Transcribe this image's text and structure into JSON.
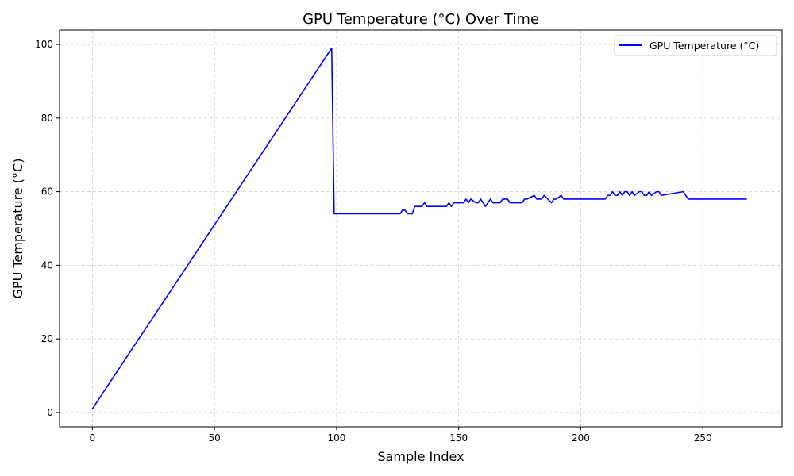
{
  "chart_data": {
    "type": "line",
    "title": "GPU Temperature (°C) Over Time",
    "xlabel": "Sample Index",
    "ylabel": "GPU Temperature (°C)",
    "xlim": [
      -13.45,
      282.45
    ],
    "ylim": [
      -3.9,
      103.9
    ],
    "xticks": [
      0,
      50,
      100,
      150,
      200,
      250
    ],
    "yticks": [
      0,
      20,
      40,
      60,
      80,
      100
    ],
    "grid": true,
    "legend_position": "top-right",
    "series": [
      {
        "name": "GPU Temperature (°C)",
        "color": "#0000ff",
        "x": [
          0,
          98,
          99,
          126,
          127,
          128,
          129,
          131,
          132,
          135,
          136,
          137,
          145,
          146,
          147,
          148,
          152,
          153,
          154,
          155,
          157,
          158,
          159,
          161,
          162,
          163,
          164,
          167,
          168,
          170,
          171,
          176,
          177,
          178,
          181,
          182,
          184,
          185,
          188,
          189,
          190,
          192,
          193,
          210,
          211,
          212,
          213,
          214,
          215,
          216,
          217,
          218,
          219,
          220,
          221,
          222,
          224,
          225,
          226,
          227,
          228,
          229,
          231,
          232,
          233,
          242,
          244,
          268
        ],
        "y": [
          1,
          99,
          54,
          54,
          55,
          55,
          54,
          54,
          56,
          56,
          57,
          56,
          56,
          57,
          56,
          57,
          57,
          58,
          57,
          58,
          57,
          57,
          58,
          56,
          57,
          58,
          57,
          57,
          58,
          58,
          57,
          57,
          58,
          58,
          59,
          58,
          58,
          59,
          57,
          58,
          58,
          59,
          58,
          58,
          59,
          59,
          60,
          59,
          59,
          60,
          59,
          60,
          60,
          59,
          60,
          59,
          60,
          60,
          59,
          59,
          60,
          59,
          60,
          60,
          59,
          60,
          58,
          58
        ]
      }
    ]
  }
}
